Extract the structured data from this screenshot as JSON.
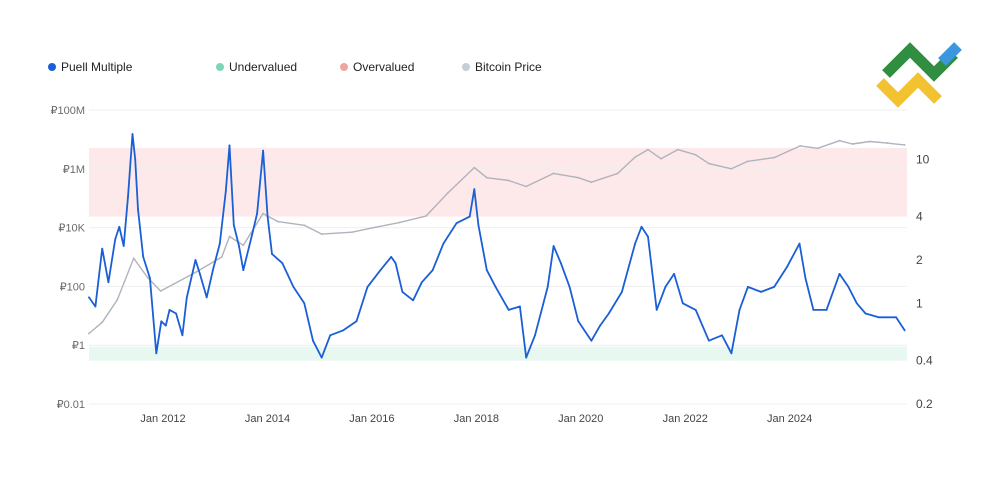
{
  "chart_data": {
    "type": "line",
    "title": "",
    "legend_position": "top-left",
    "legend": [
      {
        "label": "Puell Multiple",
        "color": "#1a5fd6"
      },
      {
        "label": "Undervalued",
        "color": "#7ed6b9"
      },
      {
        "label": "Overvalued",
        "color": "#f0a3a3"
      },
      {
        "label": "Bitcoin Price",
        "color": "#c7cdd8"
      }
    ],
    "colors": {
      "puell": "#1a5fd6",
      "price": "#b0b3bd",
      "overvalued_band": "#fde9ea",
      "undervalued_band": "#e7f8f0",
      "grid": "#efefef"
    },
    "grid": true,
    "x_axis": {
      "range": [
        "2010-08-01",
        "2026-04-01"
      ],
      "ticks": [
        {
          "date": "2012-01-01",
          "label": "Jan 2012"
        },
        {
          "date": "2014-01-01",
          "label": "Jan 2014"
        },
        {
          "date": "2016-01-01",
          "label": "Jan 2016"
        },
        {
          "date": "2018-01-01",
          "label": "Jan 2018"
        },
        {
          "date": "2020-01-01",
          "label": "Jan 2020"
        },
        {
          "date": "2022-01-01",
          "label": "Jan 2022"
        },
        {
          "date": "2024-01-01",
          "label": "Jan 2024"
        }
      ]
    },
    "y_left": {
      "scale": "log",
      "range": [
        0.01,
        100000000
      ],
      "ticks": [
        {
          "value": 100000000,
          "label": "₽100M"
        },
        {
          "value": 1000000,
          "label": "₽1M"
        },
        {
          "value": 10000,
          "label": "₽10K"
        },
        {
          "value": 100,
          "label": "₽100"
        },
        {
          "value": 1,
          "label": "₽1"
        },
        {
          "value": 0.01,
          "label": "₽0.01"
        }
      ]
    },
    "y_right": {
      "scale": "log",
      "range": [
        0.2,
        22
      ],
      "ticks": [
        {
          "value": 10,
          "label": "10"
        },
        {
          "value": 4,
          "label": "4"
        },
        {
          "value": 2,
          "label": "2"
        },
        {
          "value": 1,
          "label": "1"
        },
        {
          "value": 0.4,
          "label": "0.4"
        },
        {
          "value": 0.2,
          "label": "0.2"
        }
      ]
    },
    "bands": [
      {
        "name": "Overvalued",
        "axis": "right",
        "from": 4,
        "to": 12
      },
      {
        "name": "Undervalued",
        "axis": "right",
        "from": 0.4,
        "to": 0.5
      }
    ],
    "series": [
      {
        "name": "Puell Multiple",
        "axis": "right",
        "points": [
          [
            "2010-08-01",
            1.1
          ],
          [
            "2010-09-15",
            0.95
          ],
          [
            "2010-11-01",
            2.4
          ],
          [
            "2010-12-15",
            1.4
          ],
          [
            "2011-02-01",
            2.8
          ],
          [
            "2011-03-01",
            3.4
          ],
          [
            "2011-04-01",
            2.5
          ],
          [
            "2011-05-01",
            5.5
          ],
          [
            "2011-06-01",
            15
          ],
          [
            "2011-06-20",
            10
          ],
          [
            "2011-07-10",
            4.5
          ],
          [
            "2011-08-15",
            2.1
          ],
          [
            "2011-10-01",
            1.5
          ],
          [
            "2011-11-15",
            0.45
          ],
          [
            "2011-12-20",
            0.75
          ],
          [
            "2012-01-20",
            0.7
          ],
          [
            "2012-02-15",
            0.9
          ],
          [
            "2012-04-01",
            0.85
          ],
          [
            "2012-05-15",
            0.6
          ],
          [
            "2012-06-15",
            1.1
          ],
          [
            "2012-08-15",
            2.0
          ],
          [
            "2012-09-15",
            1.6
          ],
          [
            "2012-11-01",
            1.1
          ],
          [
            "2012-12-15",
            1.7
          ],
          [
            "2013-02-01",
            2.6
          ],
          [
            "2013-03-15",
            6.0
          ],
          [
            "2013-04-10",
            12.5
          ],
          [
            "2013-05-10",
            3.5
          ],
          [
            "2013-06-15",
            2.5
          ],
          [
            "2013-07-15",
            1.7
          ],
          [
            "2013-09-15",
            3.0
          ],
          [
            "2013-10-20",
            4.2
          ],
          [
            "2013-12-01",
            11.5
          ],
          [
            "2014-01-01",
            4.0
          ],
          [
            "2014-02-01",
            2.2
          ],
          [
            "2014-04-15",
            1.9
          ],
          [
            "2014-07-01",
            1.3
          ],
          [
            "2014-09-15",
            1.0
          ],
          [
            "2014-11-15",
            0.55
          ],
          [
            "2015-01-15",
            0.42
          ],
          [
            "2015-03-15",
            0.6
          ],
          [
            "2015-06-15",
            0.65
          ],
          [
            "2015-09-15",
            0.75
          ],
          [
            "2015-12-01",
            1.3
          ],
          [
            "2016-03-01",
            1.7
          ],
          [
            "2016-05-15",
            2.1
          ],
          [
            "2016-06-15",
            1.9
          ],
          [
            "2016-08-01",
            1.2
          ],
          [
            "2016-10-15",
            1.05
          ],
          [
            "2016-12-15",
            1.4
          ],
          [
            "2017-03-01",
            1.7
          ],
          [
            "2017-05-15",
            2.6
          ],
          [
            "2017-08-15",
            3.6
          ],
          [
            "2017-11-15",
            4.0
          ],
          [
            "2017-12-17",
            6.2
          ],
          [
            "2018-01-15",
            3.5
          ],
          [
            "2018-03-15",
            1.7
          ],
          [
            "2018-05-15",
            1.3
          ],
          [
            "2018-08-15",
            0.9
          ],
          [
            "2018-11-01",
            0.95
          ],
          [
            "2018-12-15",
            0.42
          ],
          [
            "2019-02-15",
            0.6
          ],
          [
            "2019-05-15",
            1.3
          ],
          [
            "2019-06-25",
            2.5
          ],
          [
            "2019-08-15",
            1.9
          ],
          [
            "2019-10-15",
            1.3
          ],
          [
            "2019-12-15",
            0.75
          ],
          [
            "2020-03-15",
            0.55
          ],
          [
            "2020-05-15",
            0.7
          ],
          [
            "2020-07-15",
            0.85
          ],
          [
            "2020-10-15",
            1.2
          ],
          [
            "2021-01-15",
            2.6
          ],
          [
            "2021-03-01",
            3.4
          ],
          [
            "2021-04-15",
            2.9
          ],
          [
            "2021-06-15",
            0.9
          ],
          [
            "2021-08-15",
            1.3
          ],
          [
            "2021-10-15",
            1.6
          ],
          [
            "2021-12-15",
            1.0
          ],
          [
            "2022-03-15",
            0.9
          ],
          [
            "2022-06-15",
            0.55
          ],
          [
            "2022-09-15",
            0.6
          ],
          [
            "2022-11-20",
            0.45
          ],
          [
            "2023-01-15",
            0.9
          ],
          [
            "2023-03-15",
            1.3
          ],
          [
            "2023-06-15",
            1.2
          ],
          [
            "2023-09-15",
            1.3
          ],
          [
            "2023-12-15",
            1.8
          ],
          [
            "2024-03-10",
            2.6
          ],
          [
            "2024-04-20",
            1.5
          ],
          [
            "2024-06-15",
            0.9
          ],
          [
            "2024-09-15",
            0.9
          ],
          [
            "2024-12-15",
            1.6
          ],
          [
            "2025-02-15",
            1.3
          ],
          [
            "2025-04-15",
            1.0
          ],
          [
            "2025-06-15",
            0.85
          ],
          [
            "2025-09-15",
            0.8
          ],
          [
            "2026-01-15",
            0.8
          ],
          [
            "2026-03-15",
            0.65
          ]
        ]
      },
      {
        "name": "Bitcoin Price",
        "axis": "left",
        "points": [
          [
            "2010-08-01",
            2.5
          ],
          [
            "2010-11-01",
            6
          ],
          [
            "2011-02-15",
            35
          ],
          [
            "2011-06-10",
            900
          ],
          [
            "2011-09-15",
            200
          ],
          [
            "2011-12-15",
            70
          ],
          [
            "2012-03-15",
            120
          ],
          [
            "2012-08-15",
            300
          ],
          [
            "2013-02-15",
            1000
          ],
          [
            "2013-04-10",
            5000
          ],
          [
            "2013-07-15",
            2500
          ],
          [
            "2013-11-30",
            30000
          ],
          [
            "2014-03-15",
            16000
          ],
          [
            "2014-09-15",
            12000
          ],
          [
            "2015-01-15",
            6000
          ],
          [
            "2015-08-15",
            7000
          ],
          [
            "2016-01-15",
            10000
          ],
          [
            "2016-07-15",
            15000
          ],
          [
            "2017-01-15",
            25000
          ],
          [
            "2017-06-15",
            150000
          ],
          [
            "2017-12-17",
            1100000
          ],
          [
            "2018-03-15",
            500000
          ],
          [
            "2018-08-15",
            400000
          ],
          [
            "2018-12-15",
            250000
          ],
          [
            "2019-06-25",
            700000
          ],
          [
            "2019-12-15",
            500000
          ],
          [
            "2020-03-15",
            350000
          ],
          [
            "2020-09-15",
            700000
          ],
          [
            "2021-01-15",
            2500000
          ],
          [
            "2021-04-15",
            4500000
          ],
          [
            "2021-07-15",
            2200000
          ],
          [
            "2021-11-10",
            4500000
          ],
          [
            "2022-03-15",
            3000000
          ],
          [
            "2022-06-15",
            1500000
          ],
          [
            "2022-11-20",
            1000000
          ],
          [
            "2023-03-15",
            1800000
          ],
          [
            "2023-09-15",
            2400000
          ],
          [
            "2024-03-15",
            6000000
          ],
          [
            "2024-07-15",
            5000000
          ],
          [
            "2024-12-15",
            9000000
          ],
          [
            "2025-03-15",
            7000000
          ],
          [
            "2025-07-15",
            8500000
          ],
          [
            "2025-11-15",
            7500000
          ],
          [
            "2026-03-15",
            6500000
          ]
        ]
      }
    ]
  }
}
